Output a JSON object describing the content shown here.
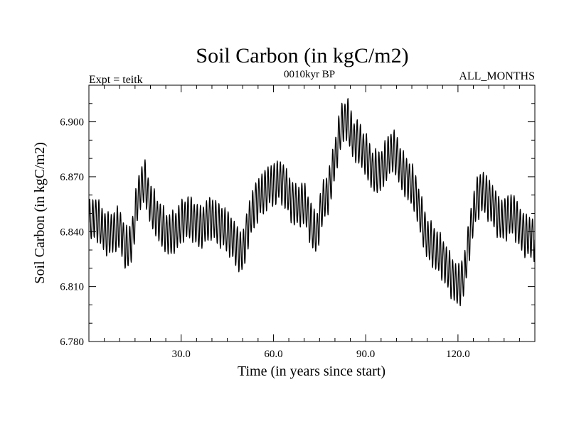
{
  "chart_data": {
    "type": "line",
    "title": "Soil Carbon (in kgC/m2)",
    "subtitle": "0010kyr BP",
    "left_label": "Expt = teitk",
    "right_label": "ALL_MONTHS",
    "xlabel": "Time (in years since start)",
    "ylabel": "Soil Carbon (in kgC/m2)",
    "xlim": [
      0,
      145
    ],
    "ylim": [
      6.78,
      6.92
    ],
    "x_ticks": [
      30,
      60,
      90,
      120
    ],
    "x_tick_labels": [
      "30.0",
      "60.0",
      "90.0",
      "120.0"
    ],
    "y_ticks": [
      6.78,
      6.81,
      6.84,
      6.87,
      6.9
    ],
    "y_tick_labels": [
      "6.780",
      "6.810",
      "6.840",
      "6.870",
      "6.900"
    ],
    "line_color": "#000000",
    "seasonal_amplitude": 0.011,
    "series": [
      {
        "name": "Soil Carbon",
        "trend": {
          "x": [
            0,
            2,
            4,
            6,
            8,
            10,
            12,
            14,
            16,
            18,
            20,
            22,
            24,
            26,
            28,
            30,
            32,
            34,
            36,
            38,
            40,
            42,
            44,
            46,
            48,
            50,
            52,
            54,
            56,
            58,
            60,
            62,
            64,
            66,
            68,
            70,
            72,
            74,
            76,
            78,
            80,
            82,
            84,
            86,
            88,
            90,
            92,
            94,
            96,
            98,
            100,
            102,
            104,
            106,
            108,
            110,
            112,
            114,
            116,
            118,
            120,
            122,
            124,
            126,
            128,
            130,
            132,
            134,
            136,
            138,
            140,
            142,
            145
          ],
          "y": [
            6.845,
            6.848,
            6.843,
            6.838,
            6.84,
            6.842,
            6.83,
            6.835,
            6.86,
            6.868,
            6.855,
            6.848,
            6.842,
            6.838,
            6.84,
            6.845,
            6.848,
            6.846,
            6.842,
            6.845,
            6.848,
            6.844,
            6.842,
            6.838,
            6.832,
            6.828,
            6.845,
            6.855,
            6.86,
            6.864,
            6.866,
            6.868,
            6.864,
            6.856,
            6.854,
            6.856,
            6.845,
            6.838,
            6.856,
            6.862,
            6.88,
            6.898,
            6.902,
            6.89,
            6.888,
            6.882,
            6.874,
            6.872,
            6.876,
            6.884,
            6.882,
            6.872,
            6.868,
            6.862,
            6.848,
            6.836,
            6.832,
            6.828,
            6.822,
            6.815,
            6.81,
            6.816,
            6.84,
            6.858,
            6.862,
            6.858,
            6.852,
            6.846,
            6.848,
            6.85,
            6.842,
            6.838,
            6.836
          ]
        }
      }
    ]
  }
}
